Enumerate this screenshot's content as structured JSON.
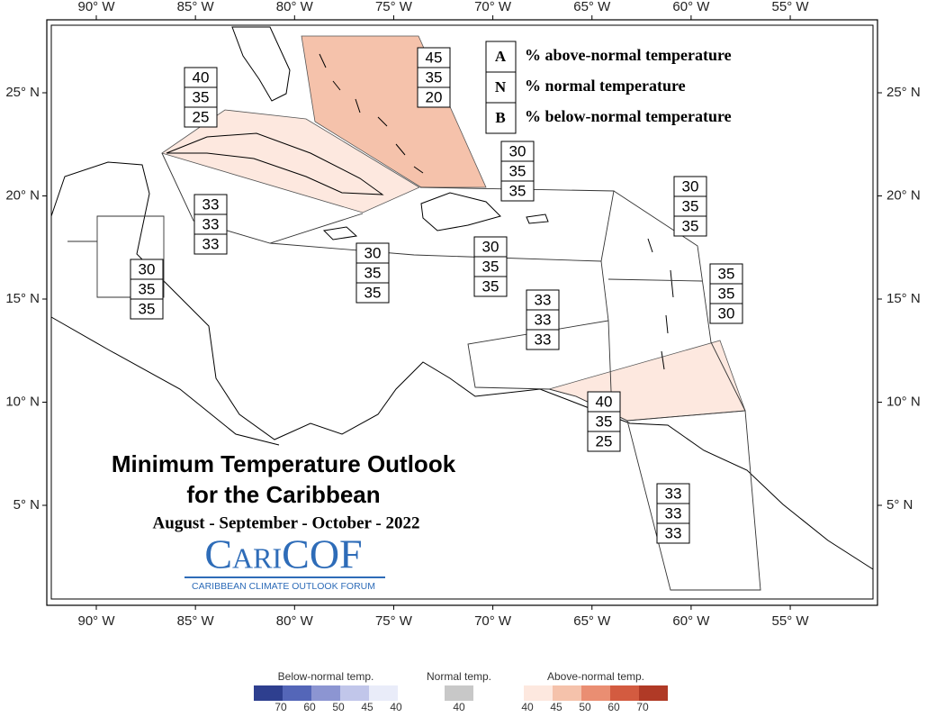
{
  "map": {
    "title_line1": "Minimum Temperature Outlook",
    "title_line2": "for the Caribbean",
    "period": "August - September - October - 2022",
    "logo": "CariCOF",
    "logo_subtitle": "CARIBBEAN CLIMATE OUTLOOK FORUM",
    "lon_ticks": [
      {
        "value": -90,
        "label": "90° W"
      },
      {
        "value": -85,
        "label": "85° W"
      },
      {
        "value": -80,
        "label": "80° W"
      },
      {
        "value": -75,
        "label": "75° W"
      },
      {
        "value": -70,
        "label": "70° W"
      },
      {
        "value": -65,
        "label": "65° W"
      },
      {
        "value": -60,
        "label": "60° W"
      },
      {
        "value": -55,
        "label": "55° W"
      }
    ],
    "lat_ticks": [
      {
        "value": 25,
        "label": "25° N"
      },
      {
        "value": 20,
        "label": "20° N"
      },
      {
        "value": 15,
        "label": "15° N"
      },
      {
        "value": 10,
        "label": "10° N"
      },
      {
        "value": 5,
        "label": "5° N"
      }
    ],
    "key": [
      {
        "letter": "A",
        "text": "% above-normal temperature"
      },
      {
        "letter": "N",
        "text": "% normal temperature"
      },
      {
        "letter": "B",
        "text": "% below-normal temperature"
      }
    ],
    "regions": [
      {
        "probs": [
          45,
          35,
          20
        ]
      },
      {
        "probs": [
          40,
          35,
          25
        ]
      },
      {
        "probs": [
          30,
          35,
          35
        ]
      },
      {
        "probs": [
          30,
          35,
          35
        ]
      },
      {
        "probs": [
          33,
          33,
          33
        ]
      },
      {
        "probs": [
          30,
          35,
          35
        ]
      },
      {
        "probs": [
          30,
          35,
          35
        ]
      },
      {
        "probs": [
          30,
          35,
          35
        ]
      },
      {
        "probs": [
          35,
          35,
          30
        ]
      },
      {
        "probs": [
          33,
          33,
          33
        ]
      },
      {
        "probs": [
          40,
          35,
          25
        ]
      },
      {
        "probs": [
          33,
          33,
          33
        ]
      }
    ],
    "colorbar": [
      {
        "label": "Below-normal temp.",
        "ticks": [
          70,
          60,
          50,
          45,
          40
        ],
        "colors": [
          "#2e3f8f",
          "#5466b8",
          "#8c95d2",
          "#c1c6ea",
          "#e9ecf9"
        ]
      },
      {
        "label": "Normal temp.",
        "ticks": [
          40
        ],
        "colors": [
          "#c8c8c8"
        ]
      },
      {
        "label": "Above-normal temp.",
        "ticks": [
          40,
          45,
          50,
          60,
          70
        ],
        "colors": [
          "#fde8df",
          "#f5c2ab",
          "#ea8e72",
          "#d35b40",
          "#b03a26"
        ]
      }
    ]
  }
}
